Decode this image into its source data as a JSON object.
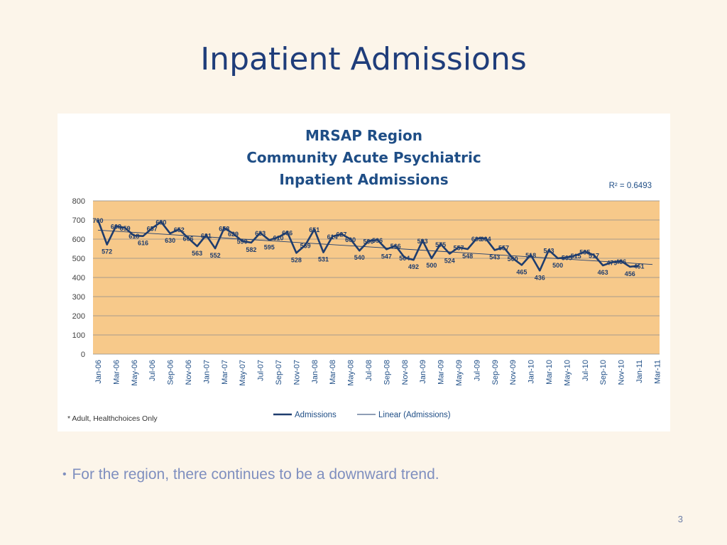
{
  "slide": {
    "title": "Inpatient Admissions",
    "bullet": "For the region, there continues to be a downward trend.",
    "page_number": "3"
  },
  "chart": {
    "title_lines": [
      "MRSAP Region",
      "Community Acute Psychiatric",
      "Inpatient Admissions"
    ],
    "r2_text": "R² = 0.6493",
    "footnote": "* Adult, Healthchoices Only",
    "legend": [
      "Admissions",
      "Linear (Admissions)"
    ]
  },
  "colors": {
    "plot_bg": "#f7c98a",
    "line": "#1f3d6e",
    "trend": "#1f3d6e",
    "text": "#1f4e86",
    "slide_bg": "#fcf5ea"
  },
  "chart_data": {
    "type": "line",
    "ylim": [
      0,
      800
    ],
    "yticks": [
      0,
      100,
      200,
      300,
      400,
      500,
      600,
      700,
      800
    ],
    "grid": true,
    "legend_position": "bottom",
    "xtick_labels": [
      "Jan-06",
      "Mar-06",
      "May-06",
      "Jul-06",
      "Sep-06",
      "Nov-06",
      "Jan-07",
      "Mar-07",
      "May-07",
      "Jul-07",
      "Sep-07",
      "Nov-07",
      "Jan-08",
      "Mar-08",
      "May-08",
      "Jul-08",
      "Sep-08",
      "Nov-08",
      "Jan-09",
      "Mar-09",
      "May-09",
      "Jul-09",
      "Sep-09",
      "Nov-09",
      "Jan-10",
      "Mar-10",
      "May-10",
      "Jul-10",
      "Sep-10",
      "Nov-10",
      "Jan-11",
      "Mar-11"
    ],
    "series": [
      {
        "name": "Admissions",
        "values": [
          700,
          572,
          668,
          659,
          618,
          616,
          657,
          690,
          630,
          652,
          606,
          563,
          621,
          552,
          658,
          629,
          590,
          582,
          633,
          595,
          610,
          636,
          528,
          569,
          651,
          531,
          614,
          627,
          600,
          540,
          590,
          596,
          547,
          566,
          504,
          492,
          593,
          500,
          575,
          524,
          557,
          548,
          603,
          604,
          543,
          557,
          500,
          465,
          518,
          436,
          543,
          500,
          505,
          515,
          535,
          517,
          463,
          479,
          486,
          456,
          461
        ],
        "labels": [
          "700",
          "572",
          "668",
          "659",
          "618",
          "616",
          "657",
          "690",
          "630",
          "652",
          "606",
          "563",
          "621",
          "552",
          "658",
          "629",
          "590",
          "582",
          "633",
          "595",
          "610",
          "636",
          "528",
          "569",
          "651",
          "531",
          "614",
          "627",
          "600",
          "540",
          "590",
          "596",
          "547",
          "566",
          "504",
          "492",
          "593",
          "500",
          "575",
          "524",
          "557",
          "548",
          "603",
          "604",
          "543",
          "557",
          "500",
          "465",
          "518",
          "436",
          "543",
          "500",
          "505",
          "515",
          "535",
          "517",
          "463",
          "479",
          "486",
          "456",
          "461"
        ]
      },
      {
        "name": "Linear (Admissions)",
        "type": "trend",
        "values": [
          647,
          468
        ]
      }
    ]
  }
}
